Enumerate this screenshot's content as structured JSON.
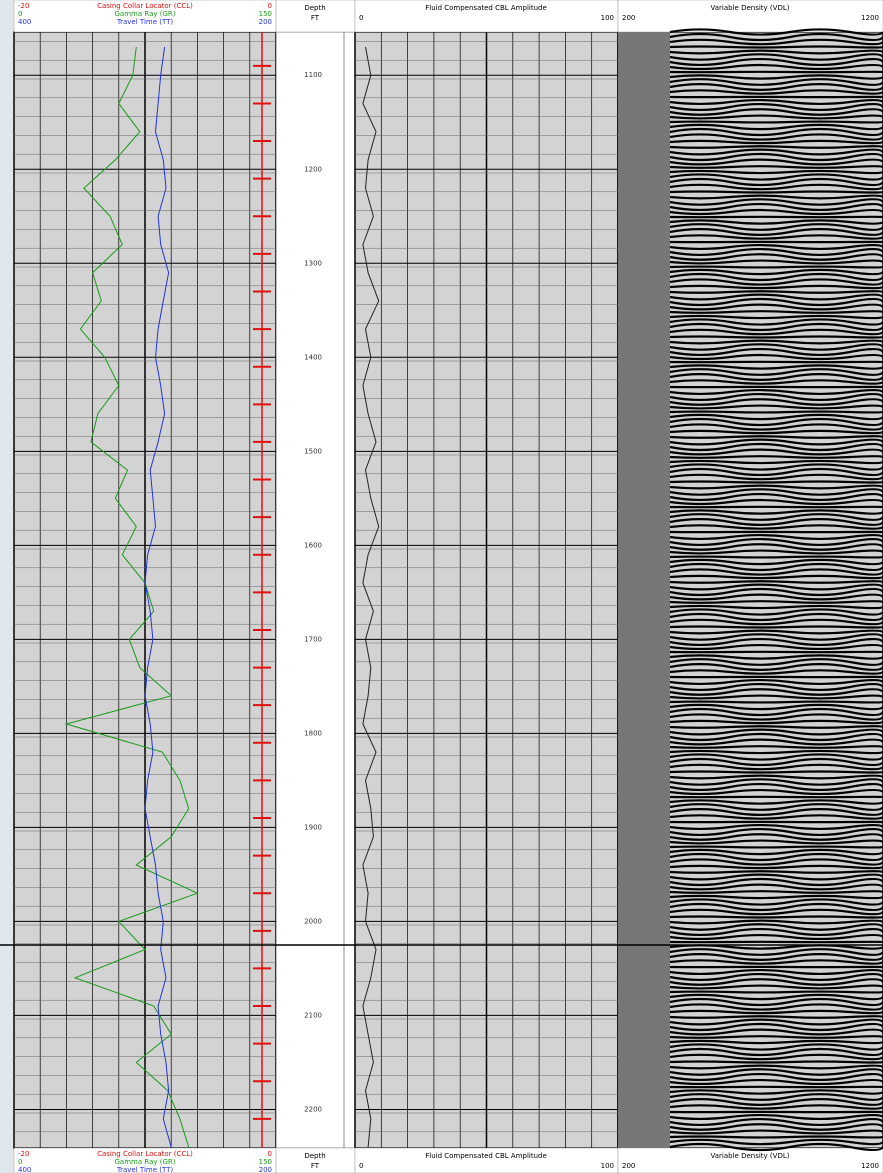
{
  "chart_data": {
    "type": "well-log",
    "depth_lim": [
      1054,
      2241
    ],
    "depth_ticks": [
      1100,
      1200,
      1300,
      1400,
      1500,
      1600,
      1700,
      1800,
      1900,
      2000,
      2100,
      2200
    ],
    "depth_header": "Depth",
    "depth_unit": "FT",
    "depths": [
      1070,
      1100,
      1130,
      1160,
      1190,
      1220,
      1250,
      1280,
      1310,
      1340,
      1370,
      1400,
      1430,
      1460,
      1490,
      1520,
      1550,
      1580,
      1610,
      1640,
      1670,
      1700,
      1730,
      1760,
      1790,
      1820,
      1850,
      1880,
      1910,
      1940,
      1970,
      2000,
      2030,
      2060,
      2090,
      2120,
      2150,
      2180,
      2210,
      2240
    ],
    "series": [
      {
        "name": "Gamma Ray (GR)",
        "color": "#1a9a1a",
        "lim": [
          0,
          150
        ],
        "values": [
          70,
          68,
          60,
          72,
          58,
          40,
          55,
          62,
          45,
          50,
          38,
          52,
          60,
          48,
          44,
          65,
          58,
          70,
          62,
          75,
          80,
          66,
          72,
          90,
          30,
          85,
          95,
          100,
          90,
          70,
          105,
          60,
          75,
          35,
          80,
          90,
          70,
          88,
          95,
          100
        ]
      },
      {
        "name": "Travel Time (TT)",
        "color": "#2233dd",
        "lim": [
          400,
          200
        ],
        "values": [
          285,
          288,
          290,
          292,
          286,
          284,
          290,
          288,
          282,
          286,
          290,
          292,
          288,
          285,
          290,
          296,
          294,
          292,
          298,
          300,
          296,
          294,
          298,
          300,
          296,
          294,
          298,
          300,
          296,
          292,
          290,
          286,
          288,
          284,
          290,
          288,
          284,
          282,
          286,
          280
        ]
      },
      {
        "name": "Fluid Compensated CBL Amplitude",
        "color": "#222222",
        "lim": [
          0,
          100
        ],
        "values": [
          4,
          6,
          3,
          8,
          5,
          4,
          7,
          3,
          5,
          9,
          4,
          6,
          3,
          5,
          8,
          4,
          6,
          9,
          5,
          3,
          7,
          4,
          6,
          5,
          3,
          8,
          4,
          6,
          7,
          3,
          5,
          4,
          8,
          6,
          3,
          5,
          7,
          4,
          6,
          5
        ]
      }
    ],
    "ccl": {
      "name": "Casing Collar Locator (CCL)",
      "color": "#e01010",
      "lim": [
        -20,
        0
      ],
      "collars": [
        1090,
        1130,
        1170,
        1210,
        1250,
        1290,
        1330,
        1370,
        1410,
        1450,
        1490,
        1530,
        1570,
        1610,
        1650,
        1690,
        1730,
        1770,
        1810,
        1850,
        1890,
        1930,
        1970,
        2010,
        2050,
        2090,
        2130,
        2170,
        2210
      ]
    },
    "vdl": {
      "name": "Variable Density (VDL)",
      "lim": [
        200,
        1200
      ]
    }
  }
}
